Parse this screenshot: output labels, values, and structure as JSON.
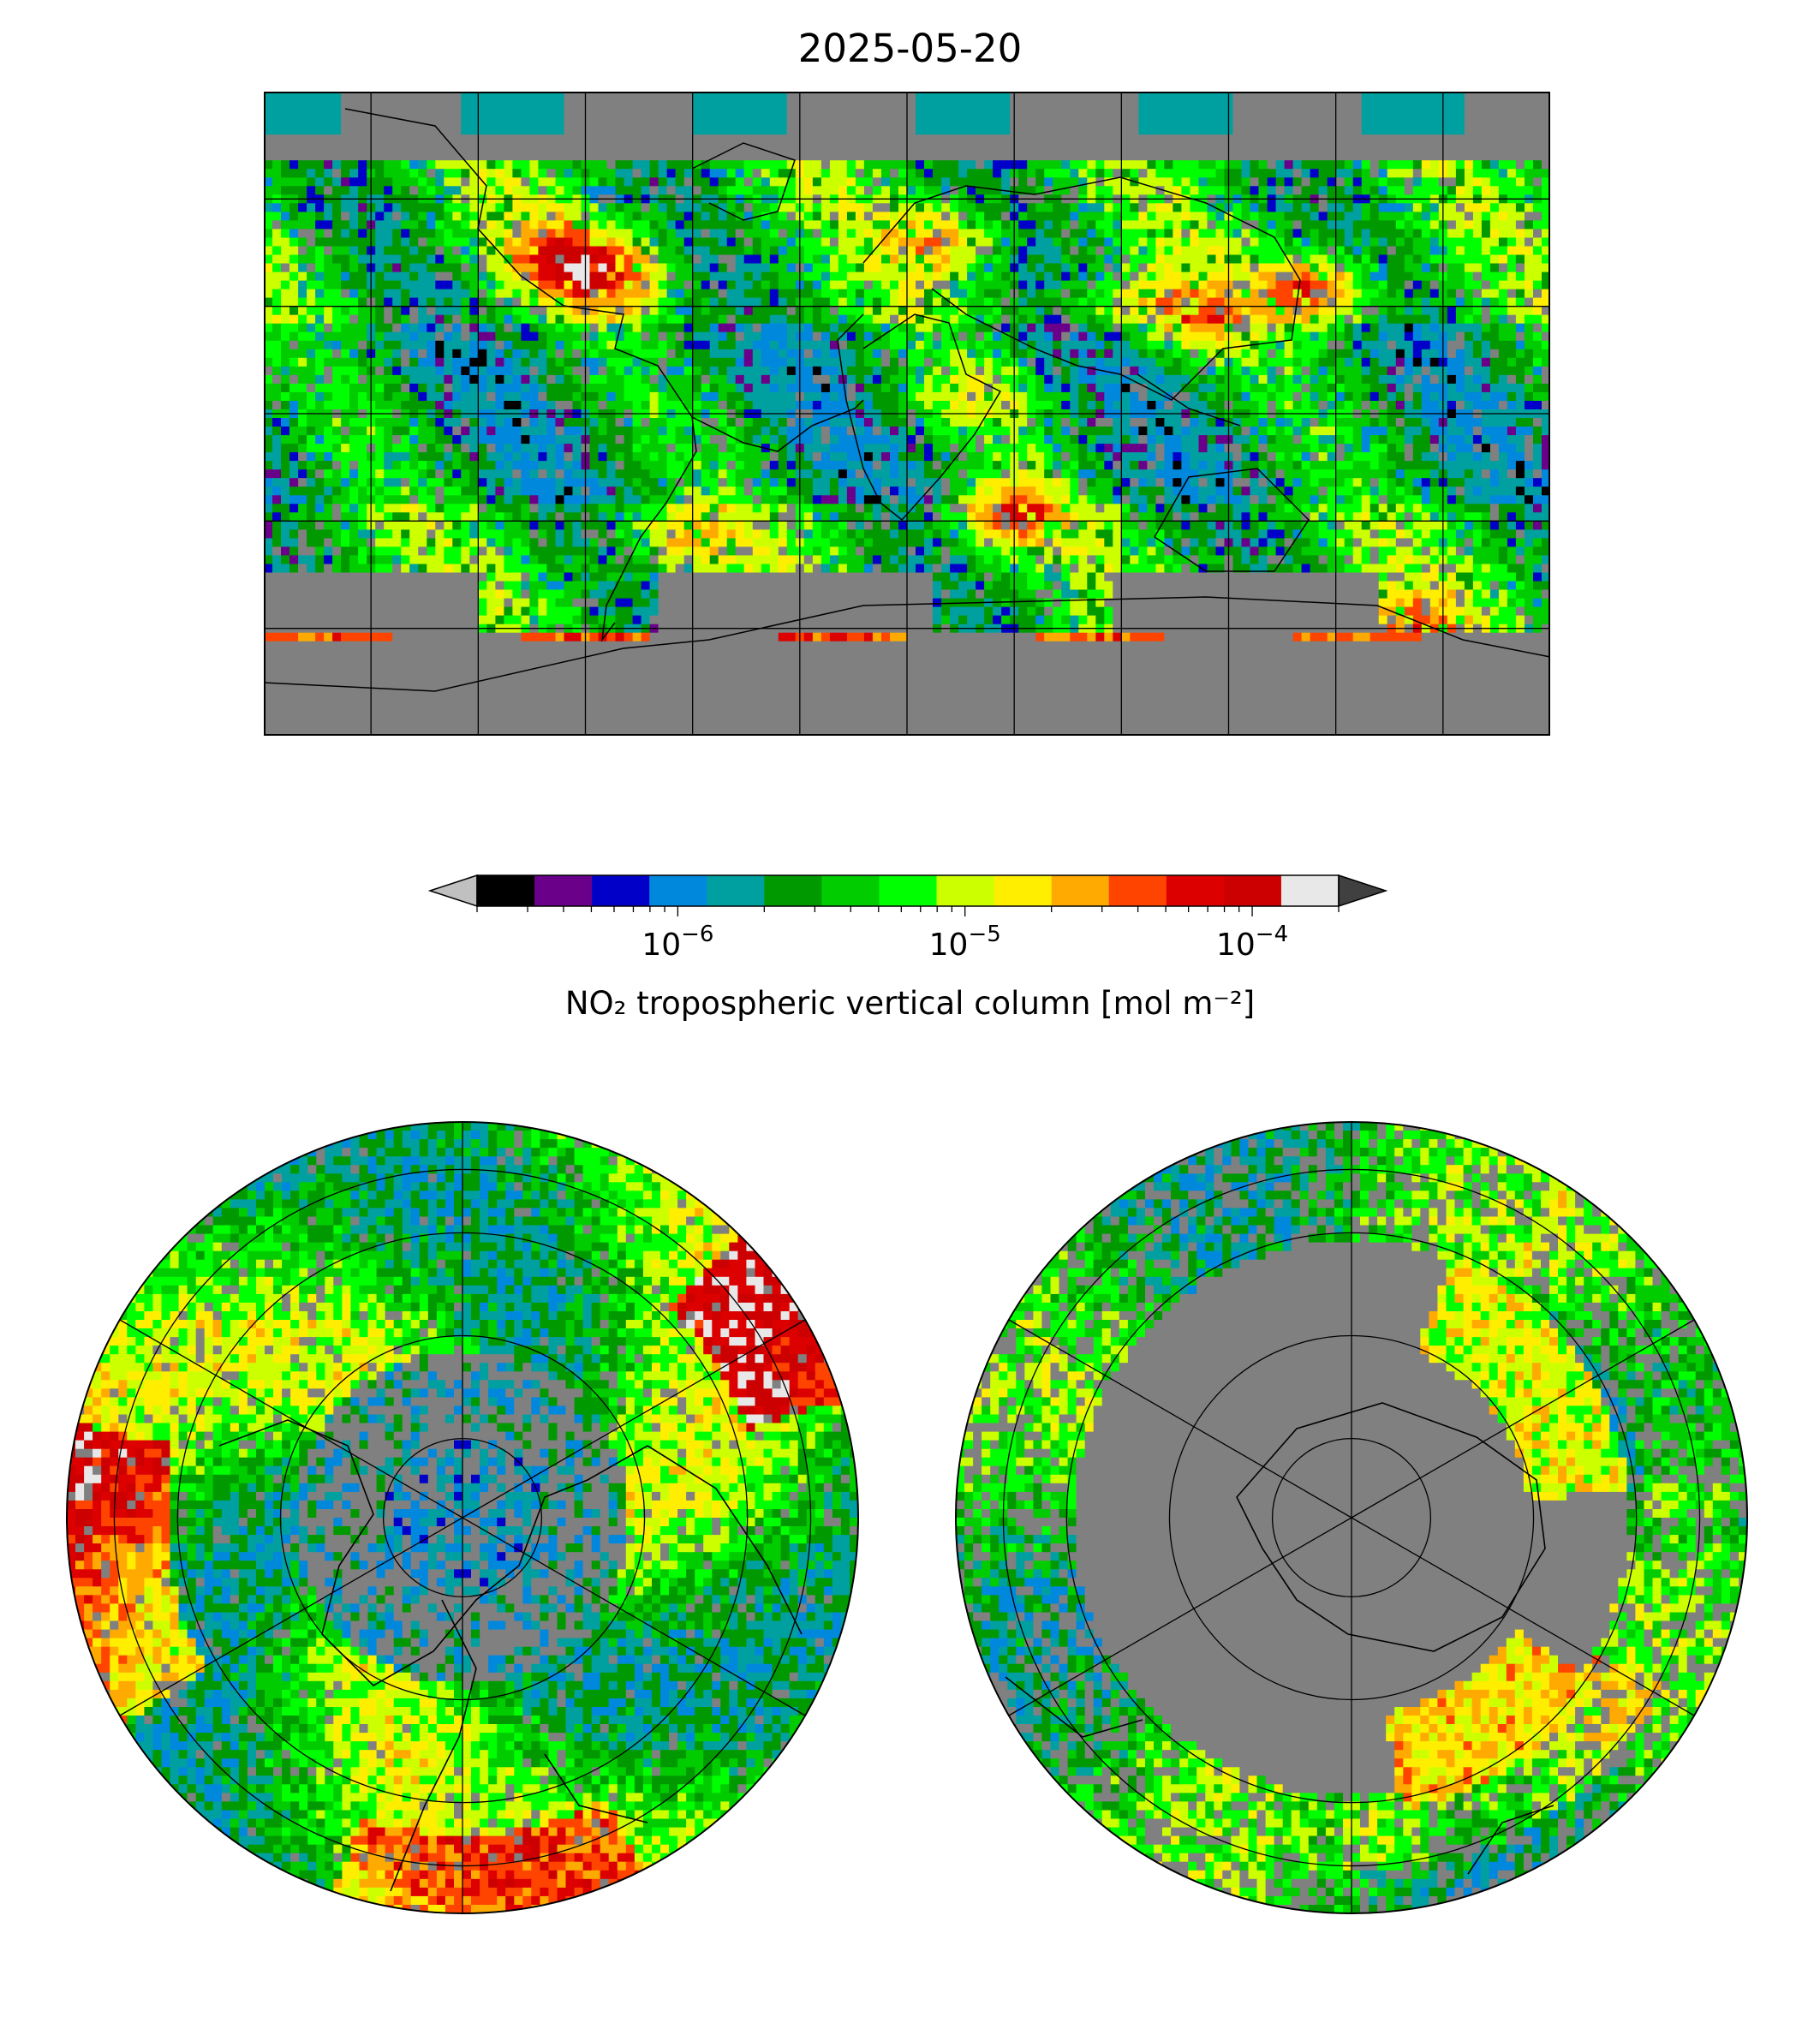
{
  "title": "2025-05-20",
  "colorbar": {
    "label": "NO₂ tropospheric vertical column [mol m⁻²]",
    "scale": "log",
    "range": [
      2e-07,
      0.0002
    ],
    "extend": "both",
    "ticks": [
      {
        "value": 1e-06,
        "label_base": "10",
        "label_exp": "−6"
      },
      {
        "value": 1e-05,
        "label_base": "10",
        "label_exp": "−5"
      },
      {
        "value": 0.0001,
        "label_base": "10",
        "label_exp": "−4"
      }
    ],
    "colors": [
      "#000000",
      "#6a008a",
      "#0000c8",
      "#0088dd",
      "#00a0a0",
      "#009900",
      "#00cc00",
      "#00ff00",
      "#ccff00",
      "#ffee00",
      "#ffaa00",
      "#ff4400",
      "#dd0000",
      "#cc0000",
      "#e8e8e8"
    ],
    "under_color": "#c0c0c0",
    "over_color": "#404040"
  },
  "map": {
    "projection": "PlateCarree",
    "no_data_color": "#808080",
    "gridlines": {
      "lon_step_deg": 30,
      "lat_step_deg": 30
    }
  },
  "polar_maps": [
    {
      "pole": "north"
    },
    {
      "pole": "south"
    }
  ]
}
